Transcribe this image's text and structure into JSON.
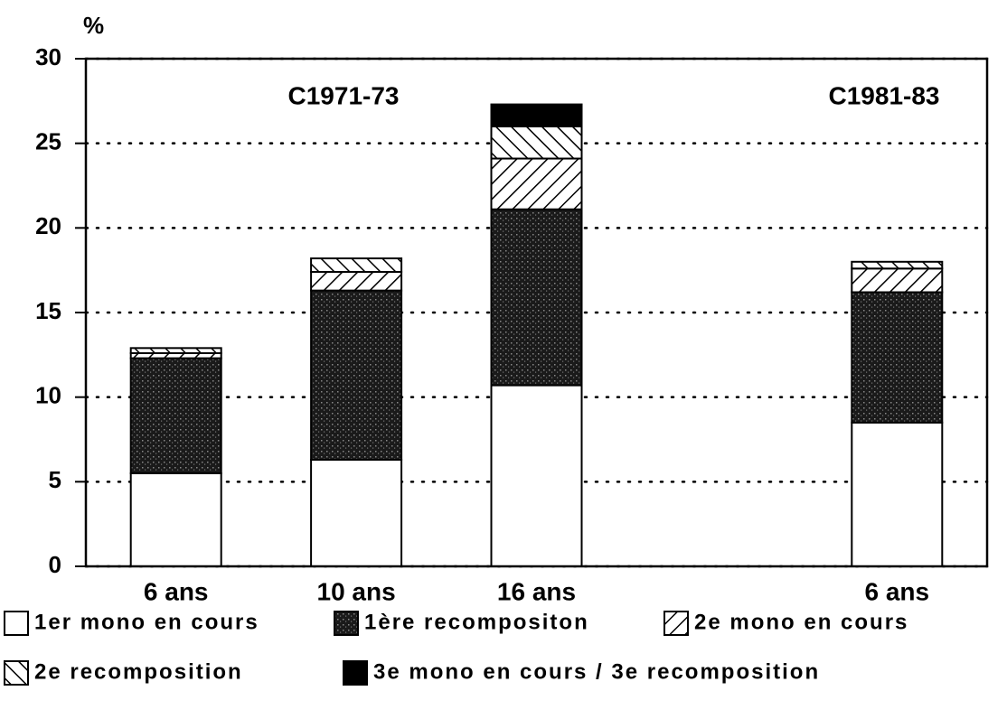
{
  "chart_data": {
    "type": "stacked-bar",
    "y_label": "%",
    "annotations": [
      "C1971-73",
      "C1981-83"
    ],
    "categories": [
      "6 ans",
      "10 ans",
      "16 ans",
      null,
      "6 ans"
    ],
    "series": [
      {
        "name": "1er mono en cours",
        "color": "#ffffff",
        "pattern": "solid",
        "values": [
          5.5,
          6.3,
          10.7,
          null,
          8.5
        ]
      },
      {
        "name": "1ère recompositon",
        "color": "#222222",
        "pattern": "stipple",
        "values": [
          6.8,
          10.0,
          10.4,
          null,
          7.7
        ]
      },
      {
        "name": "2e mono en cours",
        "color": "#ffffff",
        "pattern": "backslash",
        "values": [
          0.3,
          1.1,
          3.0,
          null,
          1.4
        ]
      },
      {
        "name": "2e recomposition",
        "color": "#ffffff",
        "pattern": "slash",
        "values": [
          0.3,
          0.8,
          1.9,
          null,
          0.4
        ]
      },
      {
        "name": "3e mono en cours / 3e recomposition",
        "color": "#000000",
        "pattern": "solid",
        "values": [
          0,
          0,
          1.3,
          null,
          0
        ]
      }
    ],
    "ylim": [
      0,
      30
    ],
    "yticks": [
      0,
      5,
      10,
      15,
      20,
      25,
      30
    ],
    "grid": true
  }
}
